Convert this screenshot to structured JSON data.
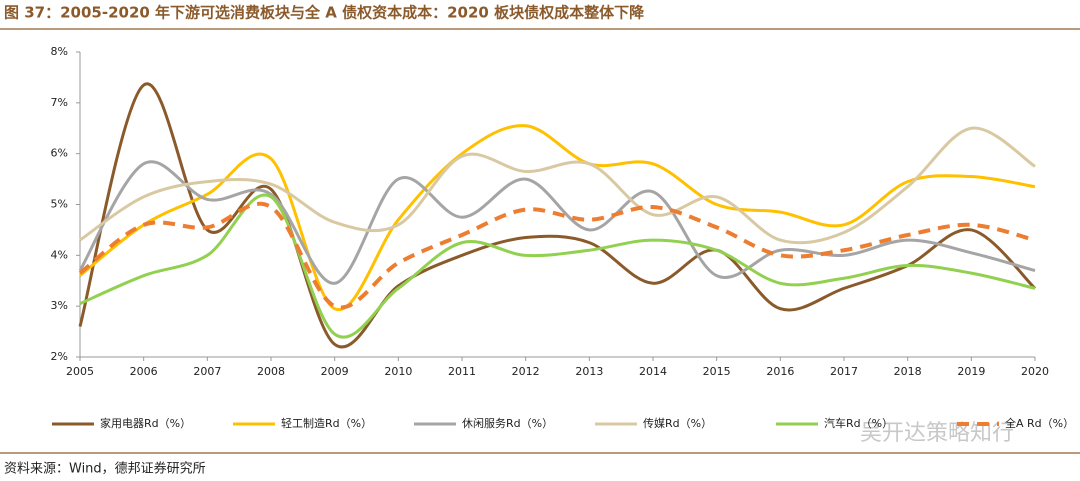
{
  "chart_data": {
    "type": "line",
    "title": "图 37：2005-2020 年下游可选消费板块与全 A 债权资本成本：2020 板块债权成本整体下降",
    "source": "资料来源：Wind，德邦证券研究所",
    "watermark": "吴开达策略知行",
    "categories": [
      "2005",
      "2006",
      "2007",
      "2008",
      "2009",
      "2010",
      "2011",
      "2012",
      "2013",
      "2014",
      "2015",
      "2016",
      "2017",
      "2018",
      "2019",
      "2020"
    ],
    "ylim": [
      2,
      8
    ],
    "yticks": [
      {
        "value": 2,
        "label": "2%"
      },
      {
        "value": 3,
        "label": "3%"
      },
      {
        "value": 4,
        "label": "4%"
      },
      {
        "value": 5,
        "label": "5%"
      },
      {
        "value": 6,
        "label": "6%"
      },
      {
        "value": 7,
        "label": "7%"
      },
      {
        "value": 8,
        "label": "8%"
      }
    ],
    "series": [
      {
        "name": "家用电器Rd（%）",
        "color": "#8B5A2B",
        "dashed": false,
        "values": [
          2.6,
          7.35,
          4.5,
          5.3,
          2.25,
          3.4,
          4.0,
          4.35,
          4.25,
          3.45,
          4.1,
          2.95,
          3.35,
          3.8,
          4.5,
          3.35
        ]
      },
      {
        "name": "轻工制造Rd（%）",
        "color": "#FFC000",
        "dashed": false,
        "values": [
          3.6,
          4.6,
          5.2,
          5.9,
          2.95,
          4.7,
          6.0,
          6.55,
          5.8,
          5.8,
          5.0,
          4.85,
          4.6,
          5.45,
          5.55,
          5.35
        ]
      },
      {
        "name": "休闲服务Rd（%）",
        "color": "#A5A5A5",
        "dashed": false,
        "values": [
          3.7,
          5.8,
          5.1,
          5.2,
          3.45,
          5.5,
          4.75,
          5.5,
          4.5,
          5.25,
          3.6,
          4.1,
          4.0,
          4.3,
          4.05,
          3.7
        ]
      },
      {
        "name": "传媒Rd（%）",
        "color": "#D9C9A3",
        "dashed": false,
        "values": [
          4.3,
          5.15,
          5.45,
          5.4,
          4.65,
          4.6,
          5.95,
          5.65,
          5.8,
          4.8,
          5.15,
          4.3,
          4.45,
          5.35,
          6.5,
          5.75
        ]
      },
      {
        "name": "汽车Rd（%）",
        "color": "#92D050",
        "dashed": false,
        "values": [
          3.05,
          3.6,
          4.0,
          5.15,
          2.45,
          3.35,
          4.25,
          4.0,
          4.1,
          4.3,
          4.1,
          3.45,
          3.55,
          3.8,
          3.65,
          3.35
        ]
      },
      {
        "name": "全A Rd（%）",
        "color": "#ED7D31",
        "dashed": true,
        "values": [
          3.65,
          4.6,
          4.55,
          4.95,
          3.0,
          3.85,
          4.4,
          4.9,
          4.7,
          4.95,
          4.55,
          4.0,
          4.1,
          4.4,
          4.6,
          4.3
        ]
      }
    ]
  }
}
